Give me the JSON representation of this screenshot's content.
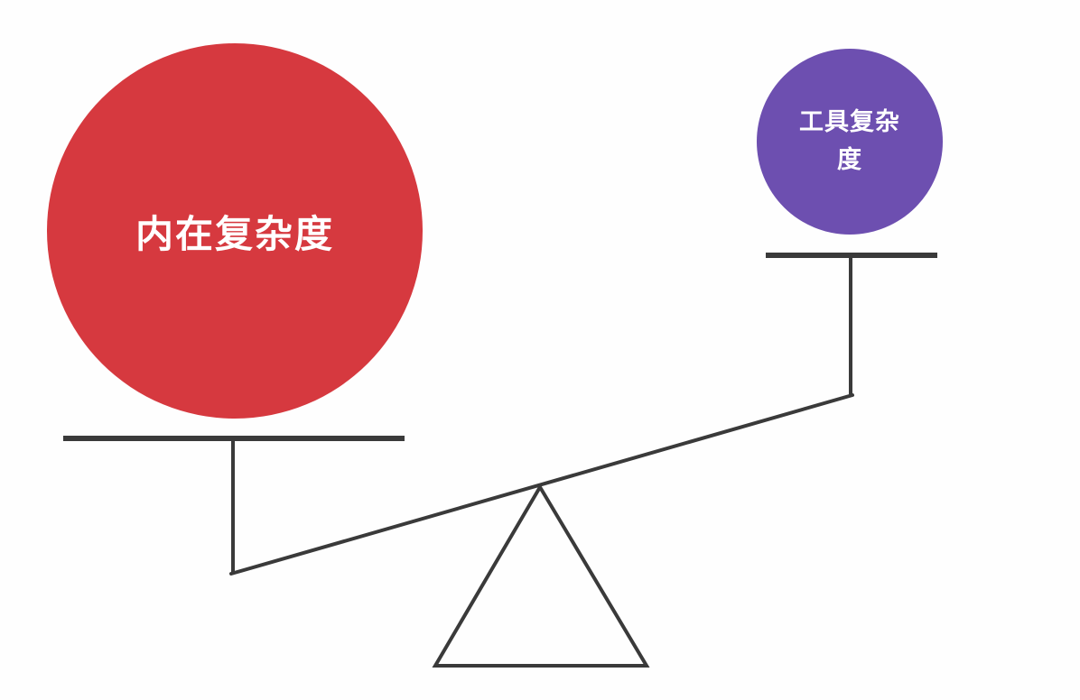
{
  "diagram": {
    "left_weight": {
      "label": "内在复杂度",
      "color": "#d6393f"
    },
    "right_weight": {
      "label": "工具复杂度",
      "color": "#6d4fb0"
    },
    "line_color": "#3a3a3a"
  }
}
